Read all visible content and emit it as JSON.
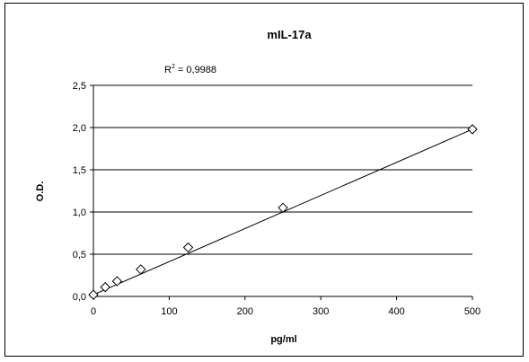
{
  "chart_data": {
    "type": "scatter",
    "title": "mIL-17a",
    "xlabel": "pg/ml",
    "ylabel": "O.D.",
    "xlim": [
      0,
      500
    ],
    "ylim": [
      0,
      2.5
    ],
    "xticks": [
      0,
      100,
      200,
      300,
      400,
      500
    ],
    "yticks": [
      "0,0",
      "0,5",
      "1,0",
      "1,5",
      "2,0",
      "2,5"
    ],
    "ytick_values": [
      0,
      0.5,
      1.0,
      1.5,
      2.0,
      2.5
    ],
    "grid": "horizontal",
    "marker": "open-diamond",
    "series": [
      {
        "x": [
          0,
          15.6,
          31.25,
          62.5,
          125,
          250,
          500
        ],
        "y": [
          0.02,
          0.11,
          0.18,
          0.32,
          0.58,
          1.05,
          1.98
        ]
      }
    ],
    "trendline": {
      "type": "linear",
      "x": [
        0,
        500
      ],
      "y": [
        0.02,
        1.98
      ]
    },
    "annotation": {
      "r2_prefix": "R",
      "r2_sup": "2",
      "r2_value": " = 0,9988"
    }
  }
}
